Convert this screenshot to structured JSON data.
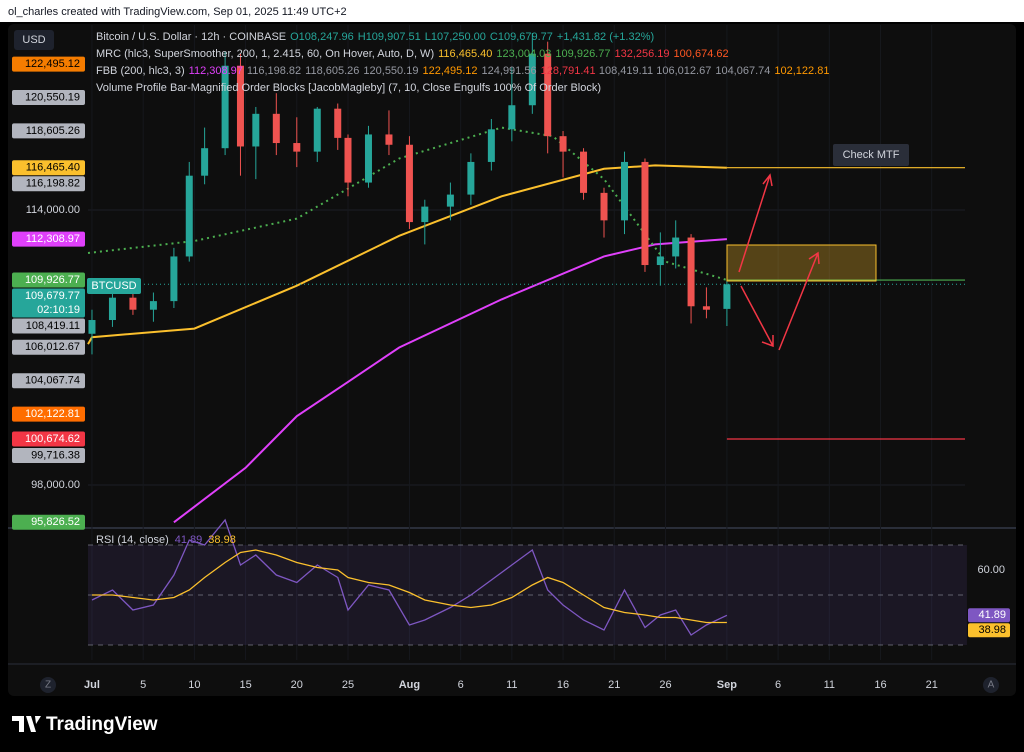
{
  "header": "ol_charles created with TradingView.com, Sep 01, 2025 11:49 UTC+2",
  "footer": "TradingView",
  "currency": "USD",
  "symbol": "BTCUSD",
  "annotation": "Check MTF",
  "corner_left": "Z",
  "corner_right": "A",
  "chart_data": {
    "type": "candlestick",
    "legend": [
      {
        "text": "Bitcoin / U.S. Dollar · 12h · COINBASE",
        "values": [
          "O108,247.96",
          "H109,907.51",
          "L107,250.00",
          "C109,679.77",
          "+1,431.82 (+1.32%)"
        ],
        "colors": [
          "#26a69a",
          "#26a69a",
          "#26a69a",
          "#26a69a",
          "#26a69a"
        ]
      },
      {
        "text": "MRC (hlc3, SuperSmoother, 200, 1, 2.415, 60, On Hover, Auto, D, W)",
        "values": [
          "116,465.40",
          "123,004.03",
          "109,926.77",
          "132,256.19",
          "100,674.62"
        ],
        "colors": [
          "#fbc02d",
          "#4caf50",
          "#4caf50",
          "#f23645",
          "#ff5722"
        ]
      },
      {
        "text": "FBB (200, hlc3, 3)",
        "values": [
          "112,308.97",
          "116,198.82",
          "118,605.26",
          "120,550.19",
          "122,495.12",
          "124,991.56",
          "128,791.41",
          "108,419.11",
          "106,012.67",
          "104,067.74",
          "102,122.81"
        ],
        "colors": [
          "#e040fb",
          "#9598a1",
          "#9598a1",
          "#9598a1",
          "#ff9800",
          "#9598a1",
          "#f23645",
          "#9598a1",
          "#9598a1",
          "#9598a1",
          "#ff9800"
        ]
      },
      {
        "text": "Volume Profile Bar-Magnified Order Blocks [JacobMagleby] (7, 10, Close Engulfs 100% Of Order Block)",
        "values": [],
        "colors": []
      }
    ],
    "x": [
      0,
      2,
      4,
      6,
      8,
      9.5,
      11,
      13,
      14.5,
      16,
      18,
      20,
      22,
      24,
      25,
      27,
      29,
      31,
      32.5,
      35,
      37,
      39,
      41,
      43,
      44.5,
      46,
      48,
      50,
      52,
      54,
      55.5,
      57,
      58.5,
      60,
      62
    ],
    "open": [
      106800,
      107600,
      108900,
      108200,
      108700,
      111300,
      116000,
      117600,
      122400,
      117700,
      119600,
      117900,
      117400,
      119900,
      118200,
      115600,
      118400,
      117800,
      113300,
      114200,
      114900,
      116800,
      118700,
      120100,
      123100,
      118300,
      117400,
      115000,
      113400,
      116800,
      110800,
      111300,
      112400,
      108400,
      108247.96
    ],
    "high": [
      108200,
      109400,
      110000,
      109200,
      111800,
      116800,
      118800,
      123200,
      123100,
      120000,
      120800,
      119400,
      120000,
      120200,
      118400,
      118900,
      119800,
      118300,
      114600,
      115600,
      117300,
      119300,
      122300,
      124300,
      123800,
      118600,
      117600,
      115300,
      117400,
      117000,
      112700,
      113400,
      112600,
      109500,
      109907.51
    ],
    "low": [
      105600,
      107200,
      107900,
      107500,
      108300,
      111000,
      115500,
      117200,
      116000,
      115800,
      117200,
      116500,
      116800,
      117500,
      114800,
      115300,
      117200,
      112900,
      112000,
      113400,
      114300,
      116300,
      118000,
      119600,
      117300,
      115900,
      114600,
      112400,
      112600,
      110400,
      109600,
      110600,
      107400,
      107700,
      107250.0
    ],
    "close": [
      107600,
      108900,
      108200,
      108700,
      111300,
      116000,
      117600,
      122400,
      117700,
      119600,
      117900,
      117400,
      119900,
      118200,
      115600,
      118400,
      117800,
      113300,
      114200,
      114900,
      116800,
      118700,
      120100,
      123100,
      118300,
      117400,
      115000,
      113400,
      116800,
      110800,
      111300,
      112400,
      108400,
      108200,
      109679.77
    ],
    "up_color": "#26a69a",
    "down_color": "#ef5350",
    "overlays": [
      {
        "color": "#fbc02d",
        "dash": false,
        "x": [
          -8,
          0,
          10,
          20,
          30,
          40,
          50,
          55,
          62
        ],
        "values": [
          106200,
          106600,
          107100,
          109600,
          112500,
          114800,
          116400,
          116600,
          116465.4
        ]
      },
      {
        "color": "#e040fb",
        "dash": false,
        "x": [
          8,
          15,
          20,
          25,
          30,
          40,
          50,
          55,
          62
        ],
        "values": [
          95826.52,
          99000,
          102000,
          104000,
          106000,
          108800,
          111300,
          112000,
          112308.97
        ]
      },
      {
        "color": "#4caf50",
        "dash": true,
        "x": [
          -8,
          10,
          20,
          30,
          40,
          45,
          50,
          56,
          62
        ],
        "values": [
          111500,
          112200,
          113500,
          117000,
          118800,
          118300,
          115800,
          111000,
          109926.77
        ]
      }
    ],
    "xlim": [
      -8.2,
      85.25
    ],
    "ylim": [
      95670,
      124770
    ],
    "xticks": [
      {
        "value": 0,
        "label": "Jul"
      },
      5,
      10,
      15,
      20,
      25,
      {
        "value": 31,
        "label": "Aug"
      },
      {
        "value": 36,
        "label": "6"
      },
      {
        "value": 41,
        "label": "11"
      },
      {
        "value": 46,
        "label": "16"
      },
      {
        "value": 51,
        "label": "21"
      },
      {
        "value": 56,
        "label": "26"
      },
      {
        "value": 62,
        "label": "Sep"
      },
      {
        "value": 67,
        "label": "6"
      },
      {
        "value": 72,
        "label": "11"
      },
      {
        "value": 77,
        "label": "16"
      },
      {
        "value": 82,
        "label": "21"
      }
    ],
    "yticks": [
      {
        "value": 114000,
        "label": "114,000.00"
      },
      {
        "value": 98000,
        "label": "98,000.00"
      }
    ],
    "price_labels": [
      {
        "value": 122495.12,
        "label": "122,495.12",
        "color": "#f57c00",
        "text_color": "#000000"
      },
      {
        "value": 120550.19,
        "label": "120,550.19",
        "color": "#b2b5be",
        "text_color": "#000000"
      },
      {
        "value": 118605.26,
        "label": "118,605.26",
        "color": "#b2b5be",
        "text_color": "#000000"
      },
      {
        "value": 116465.4,
        "label": "116,465.40",
        "color": "#fbc02d",
        "text_color": "#000000",
        "line": true
      },
      {
        "value": 116198.82,
        "label": "116,198.82",
        "color": "#b2b5be",
        "text_color": "#000000"
      },
      {
        "value": 112308.97,
        "label": "112,308.97",
        "color": "#e040fb",
        "text_color": "#ffffff"
      },
      {
        "value": 109926.77,
        "label": "109,926.77",
        "color": "#4caf50",
        "text_color": "#ffffff",
        "line": true
      },
      {
        "value": 109679.77,
        "label": "109,679.77",
        "color": "#26a69a",
        "text_color": "#ffffff",
        "sub": "02:10:19",
        "current": true
      },
      {
        "value": 108419.11,
        "label": "108,419.11",
        "color": "#b2b5be",
        "text_color": "#000000"
      },
      {
        "value": 106012.67,
        "label": "106,012.67",
        "color": "#b2b5be",
        "text_color": "#000000"
      },
      {
        "value": 104067.74,
        "label": "104,067.74",
        "color": "#b2b5be",
        "text_color": "#000000"
      },
      {
        "value": 102122.81,
        "label": "102,122.81",
        "color": "#ff6d00",
        "text_color": "#ffffff"
      },
      {
        "value": 100674.62,
        "label": "100,674.62",
        "color": "#f23645",
        "text_color": "#ffffff",
        "line": true
      },
      {
        "value": 99716.38,
        "label": "99,716.38",
        "color": "#b2b5be",
        "text_color": "#000000"
      },
      {
        "value": 95826.52,
        "label": "95,826.52",
        "color": "#4caf50",
        "text_color": "#ffffff"
      }
    ],
    "rsi": {
      "title": "RSI (14, close)",
      "value_text": "41.89",
      "ma_text": "38.98",
      "color": "#7e57c2",
      "ma_color": "#fbc02d",
      "values": [
        48,
        52,
        44,
        46,
        58,
        72,
        70,
        80,
        62,
        66,
        58,
        55,
        62,
        57,
        44,
        54,
        52,
        38,
        40,
        45,
        50,
        56,
        62,
        68,
        52,
        46,
        40,
        36,
        52,
        37,
        42,
        44,
        34,
        38,
        41.89
      ],
      "ma": [
        50,
        50,
        49,
        48,
        49,
        52,
        57,
        63,
        67,
        68,
        66,
        63,
        61,
        60,
        57,
        55,
        54,
        51,
        48,
        46,
        45,
        46,
        49,
        54,
        57,
        55,
        50,
        45,
        43,
        42,
        41,
        41,
        40,
        39,
        38.98
      ],
      "ylim": [
        24,
        76
      ],
      "yticks": [
        {
          "value": 60,
          "label": "60.00"
        }
      ],
      "bands": [
        70,
        50,
        30
      ]
    }
  }
}
